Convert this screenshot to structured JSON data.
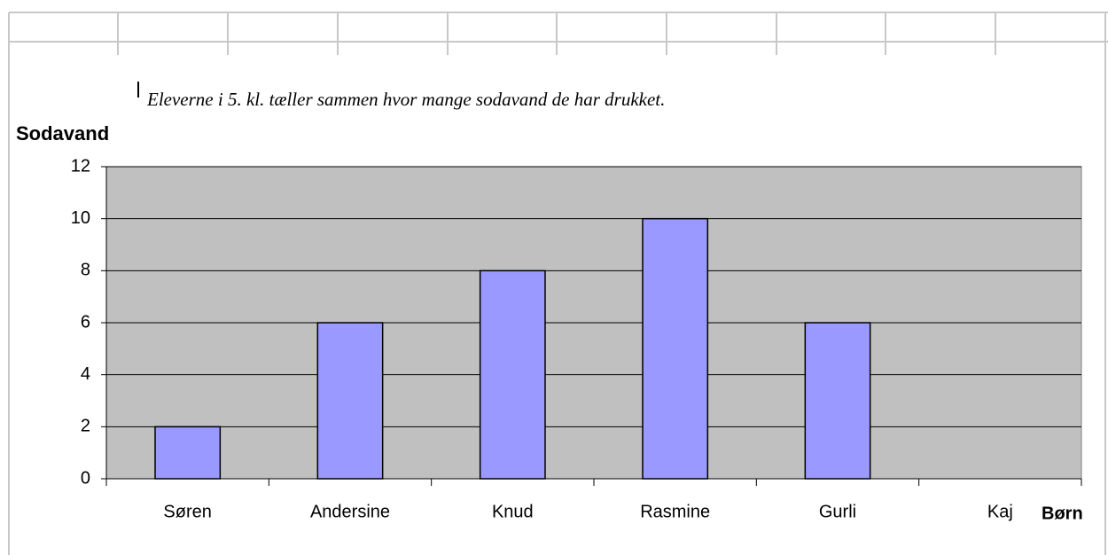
{
  "chart_data": {
    "type": "bar",
    "subtitle": "Eleverne i 5. kl. tæller sammen hvor mange sodavand de har drukket.",
    "y_label": "Sodavand",
    "x_label": "Børn",
    "categories": [
      "Søren",
      "Andersine",
      "Knud",
      "Rasmine",
      "Gurli",
      "Kaj"
    ],
    "values": [
      2,
      6,
      8,
      10,
      6,
      null
    ],
    "color": "#9999ff",
    "background": "#c0c0c0",
    "ylim": [
      0,
      12
    ],
    "yticks": [
      0,
      2,
      4,
      6,
      8,
      10,
      12
    ],
    "grid": true
  }
}
